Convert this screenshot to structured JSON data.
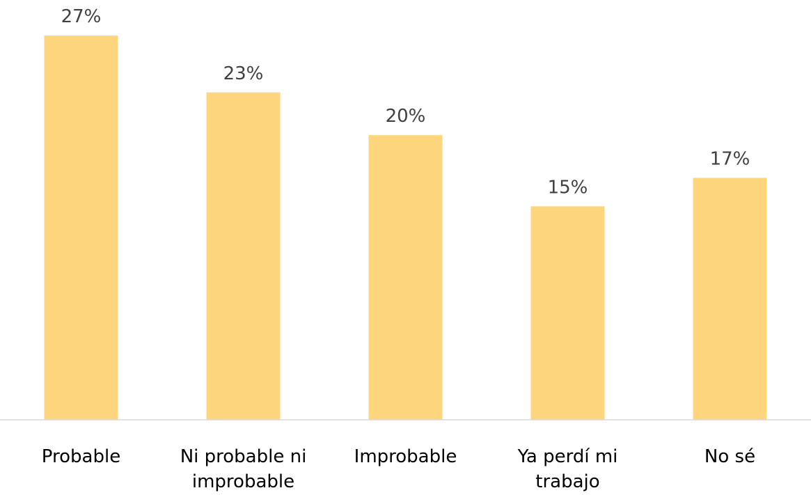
{
  "chart_data": {
    "type": "bar",
    "categories": [
      [
        "Probable"
      ],
      [
        "Ni probable ni",
        "improbable"
      ],
      [
        "Improbable"
      ],
      [
        "Ya perdí mi",
        "trabajo"
      ],
      [
        "No sé"
      ]
    ],
    "values": [
      27,
      23,
      20,
      15,
      17
    ],
    "value_labels": [
      "27%",
      "23%",
      "20%",
      "15%",
      "17%"
    ],
    "ylim": [
      0,
      30
    ],
    "grid": false,
    "bar_color": "#FDD57C",
    "axis_color": "#D9D9D9"
  }
}
